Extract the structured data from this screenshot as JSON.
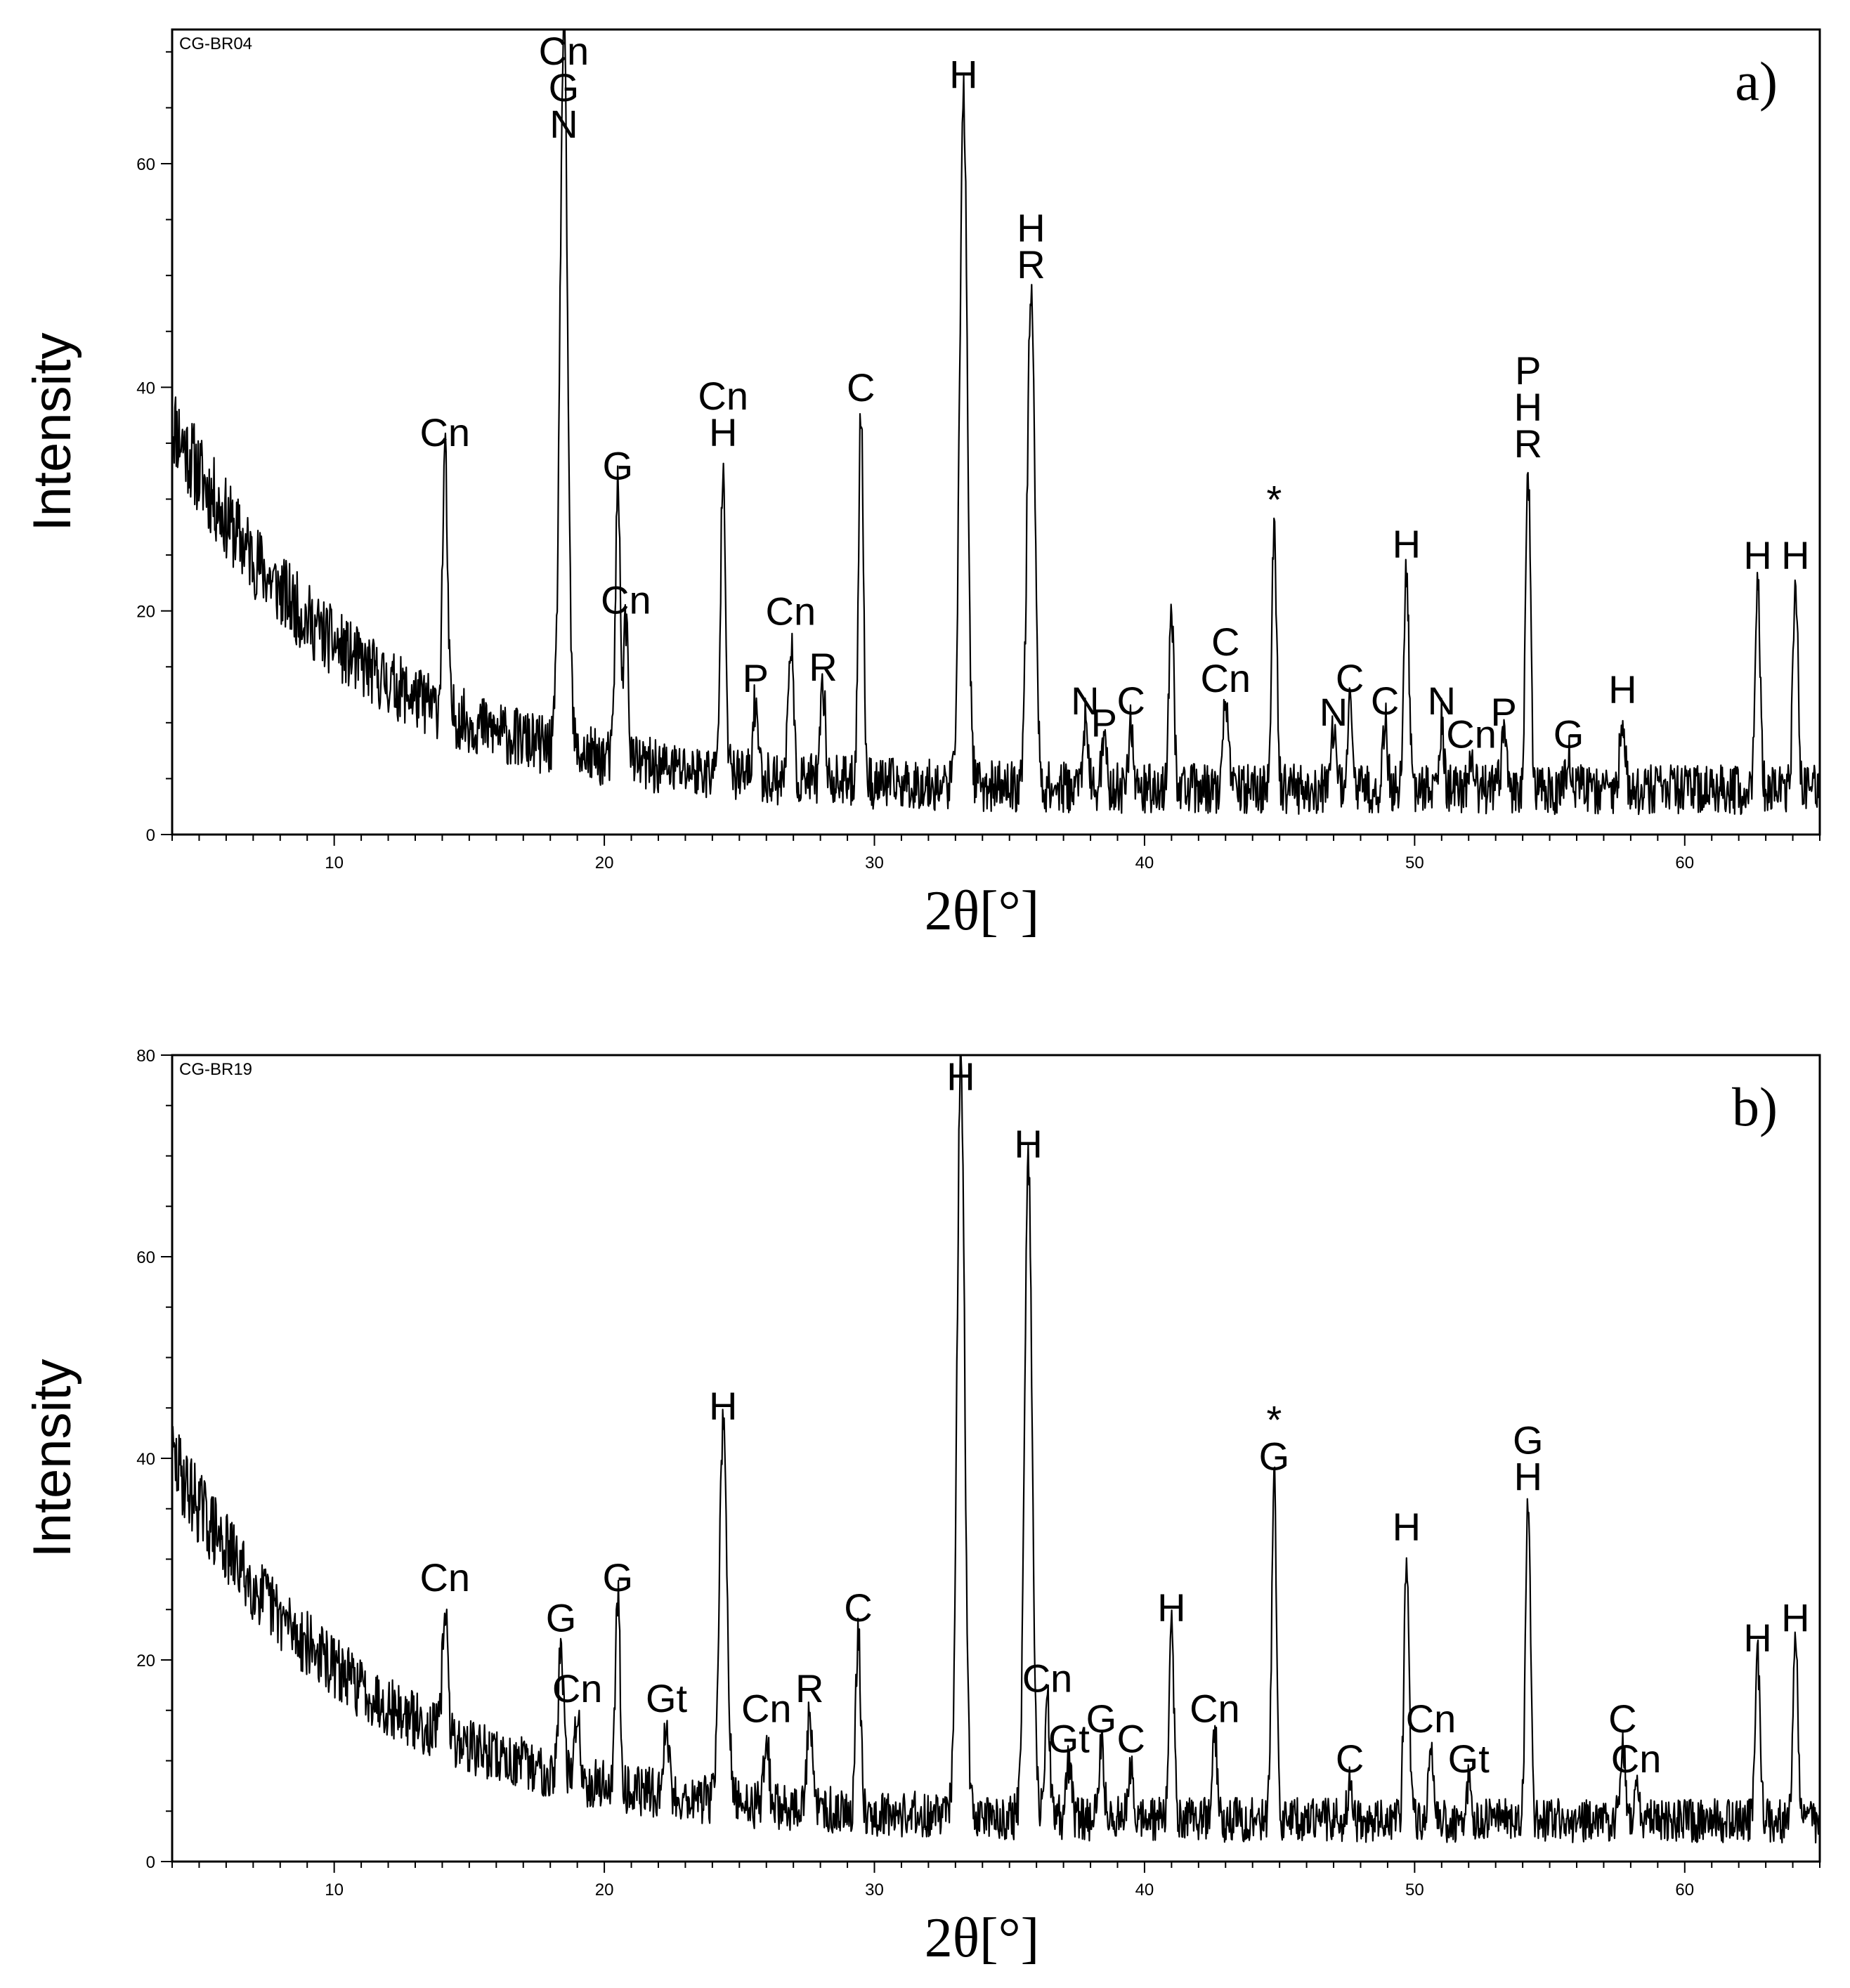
{
  "chart_data": [
    {
      "type": "line",
      "panel_label": "a)",
      "sample_id": "CG-BR04",
      "xlabel": "2θ[°]",
      "ylabel": "Intensity",
      "xlim": [
        4,
        65
      ],
      "ylim": [
        0,
        72
      ],
      "x_ticks": [
        10,
        20,
        30,
        40,
        50,
        60
      ],
      "y_ticks": [
        0,
        20,
        40,
        60
      ],
      "grid": false,
      "background": {
        "start": 33,
        "decay": 6.5,
        "base": 4
      },
      "noise": 4,
      "peaks": [
        {
          "x": 14.1,
          "y": 34,
          "labels": [
            "Cn"
          ]
        },
        {
          "x": 18.5,
          "y": 72,
          "labels": [
            "Cn",
            "G",
            "N"
          ]
        },
        {
          "x": 20.5,
          "y": 31,
          "labels": [
            "G"
          ]
        },
        {
          "x": 20.8,
          "y": 19,
          "labels": [
            "Cn"
          ]
        },
        {
          "x": 24.4,
          "y": 34,
          "labels": [
            "Cn",
            "H"
          ]
        },
        {
          "x": 25.6,
          "y": 12,
          "labels": [
            "P"
          ]
        },
        {
          "x": 26.9,
          "y": 18,
          "labels": [
            "Cn"
          ]
        },
        {
          "x": 28.1,
          "y": 13,
          "labels": [
            "R"
          ]
        },
        {
          "x": 29.5,
          "y": 38,
          "labels": [
            "C"
          ]
        },
        {
          "x": 33.3,
          "y": 66,
          "labels": [
            "H"
          ]
        },
        {
          "x": 35.8,
          "y": 49,
          "labels": [
            "H",
            "R"
          ]
        },
        {
          "x": 37.8,
          "y": 10,
          "labels": [
            "N"
          ]
        },
        {
          "x": 38.5,
          "y": 8,
          "labels": [
            "P"
          ]
        },
        {
          "x": 39.5,
          "y": 10,
          "labels": [
            "C"
          ]
        },
        {
          "x": 41.0,
          "y": 20,
          "labels": []
        },
        {
          "x": 43.0,
          "y": 12,
          "labels": [
            "C",
            "Cn"
          ]
        },
        {
          "x": 44.8,
          "y": 28,
          "labels": [
            "*"
          ]
        },
        {
          "x": 47.0,
          "y": 9,
          "labels": [
            "N"
          ]
        },
        {
          "x": 47.6,
          "y": 12,
          "labels": [
            "C"
          ]
        },
        {
          "x": 48.9,
          "y": 10,
          "labels": [
            "C"
          ]
        },
        {
          "x": 49.7,
          "y": 24,
          "labels": [
            "H"
          ]
        },
        {
          "x": 51.0,
          "y": 10,
          "labels": [
            "N"
          ]
        },
        {
          "x": 52.1,
          "y": 7,
          "labels": [
            "Cn"
          ]
        },
        {
          "x": 53.3,
          "y": 9,
          "labels": [
            "P"
          ]
        },
        {
          "x": 54.2,
          "y": 33,
          "labels": [
            "P",
            "H",
            "R"
          ]
        },
        {
          "x": 55.7,
          "y": 7,
          "labels": [
            "G"
          ]
        },
        {
          "x": 57.7,
          "y": 11,
          "labels": [
            "H"
          ]
        },
        {
          "x": 62.7,
          "y": 23,
          "labels": [
            "H"
          ]
        },
        {
          "x": 64.1,
          "y": 23,
          "labels": [
            "H"
          ]
        }
      ]
    },
    {
      "type": "line",
      "panel_label": "b)",
      "sample_id": "CG-BR19",
      "xlabel": "2θ[°]",
      "ylabel": "Intensity",
      "xlim": [
        4,
        65
      ],
      "ylim": [
        0,
        80
      ],
      "x_ticks": [
        10,
        20,
        30,
        40,
        50,
        60
      ],
      "y_ticks": [
        0,
        20,
        40,
        60,
        80
      ],
      "grid": false,
      "background": {
        "start": 36,
        "decay": 7,
        "base": 4
      },
      "noise": 4,
      "peaks": [
        {
          "x": 14.1,
          "y": 26,
          "labels": [
            "Cn"
          ]
        },
        {
          "x": 18.4,
          "y": 22,
          "labels": [
            "G"
          ]
        },
        {
          "x": 19.0,
          "y": 15,
          "labels": [
            "Cn"
          ]
        },
        {
          "x": 20.5,
          "y": 26,
          "labels": [
            "G"
          ]
        },
        {
          "x": 22.3,
          "y": 14,
          "labels": [
            "Gt"
          ]
        },
        {
          "x": 24.4,
          "y": 43,
          "labels": [
            "H"
          ]
        },
        {
          "x": 26.0,
          "y": 13,
          "labels": [
            "Cn"
          ]
        },
        {
          "x": 27.6,
          "y": 15,
          "labels": [
            "R"
          ]
        },
        {
          "x": 29.4,
          "y": 23,
          "labels": [
            "C"
          ]
        },
        {
          "x": 33.2,
          "y": 80,
          "labels": [
            "H"
          ]
        },
        {
          "x": 35.7,
          "y": 69,
          "labels": [
            "H"
          ]
        },
        {
          "x": 36.4,
          "y": 16,
          "labels": [
            "Cn"
          ]
        },
        {
          "x": 37.2,
          "y": 10,
          "labels": [
            "Gt"
          ]
        },
        {
          "x": 38.4,
          "y": 12,
          "labels": [
            "G"
          ]
        },
        {
          "x": 39.5,
          "y": 10,
          "labels": [
            "C"
          ]
        },
        {
          "x": 41.0,
          "y": 23,
          "labels": [
            "H"
          ]
        },
        {
          "x": 42.6,
          "y": 13,
          "labels": [
            "Cn"
          ]
        },
        {
          "x": 44.8,
          "y": 38,
          "labels": [
            "*",
            "G"
          ]
        },
        {
          "x": 47.6,
          "y": 8,
          "labels": [
            "C"
          ]
        },
        {
          "x": 49.7,
          "y": 31,
          "labels": [
            "H"
          ]
        },
        {
          "x": 50.6,
          "y": 12,
          "labels": [
            "Cn"
          ]
        },
        {
          "x": 52.0,
          "y": 8,
          "labels": [
            "Gt"
          ]
        },
        {
          "x": 54.2,
          "y": 36,
          "labels": [
            "G",
            "H"
          ]
        },
        {
          "x": 57.7,
          "y": 12,
          "labels": [
            "C"
          ]
        },
        {
          "x": 58.2,
          "y": 8,
          "labels": [
            "Cn"
          ]
        },
        {
          "x": 62.7,
          "y": 20,
          "labels": [
            "H"
          ]
        },
        {
          "x": 64.1,
          "y": 22,
          "labels": [
            "H"
          ]
        }
      ]
    }
  ]
}
